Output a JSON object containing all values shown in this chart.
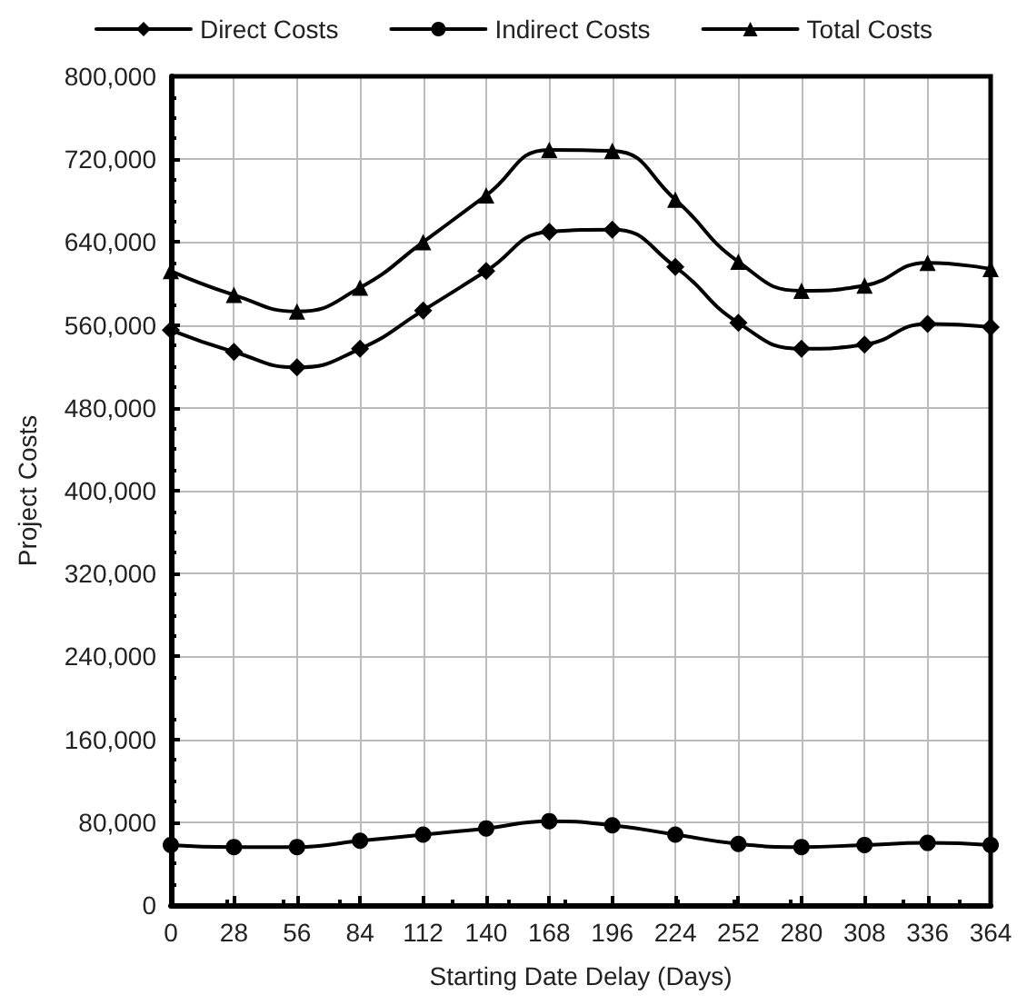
{
  "chart_data": {
    "type": "line",
    "xlabel": "Starting Date Delay (Days)",
    "ylabel": "Project Costs",
    "x": [
      0,
      28,
      56,
      84,
      112,
      140,
      168,
      196,
      224,
      252,
      280,
      308,
      336,
      364
    ],
    "series": [
      {
        "name": "Direct Costs",
        "color": "#000000",
        "marker": "diamond",
        "values": [
          555000,
          534000,
          519000,
          537000,
          574000,
          612000,
          650000,
          652000,
          616000,
          562000,
          537000,
          541000,
          561000,
          558000
        ]
      },
      {
        "name": "Indirect Costs",
        "color": "#000000",
        "marker": "circle",
        "values": [
          58000,
          56000,
          56000,
          62000,
          68000,
          74000,
          81000,
          77000,
          68000,
          59000,
          56000,
          58000,
          60000,
          58000
        ]
      },
      {
        "name": "Total Costs",
        "color": "#000000",
        "marker": "triangle",
        "values": [
          612000,
          589000,
          573000,
          596000,
          640000,
          685000,
          729000,
          728000,
          681000,
          621000,
          593000,
          598000,
          620000,
          614000
        ]
      }
    ],
    "xlim": [
      0,
      364
    ],
    "xticks": [
      0,
      28,
      56,
      84,
      112,
      140,
      168,
      196,
      224,
      252,
      280,
      308,
      336,
      364
    ],
    "ylim": [
      0,
      800000
    ],
    "yticks": [
      0,
      {
        "value": 80000,
        "label": "80,000"
      },
      {
        "value": 160000,
        "label": "160,000"
      },
      {
        "value": 240000,
        "label": "240,000"
      },
      {
        "value": 320000,
        "label": "320,000"
      },
      {
        "value": 400000,
        "label": "400,000"
      },
      {
        "value": 480000,
        "label": "480,000"
      },
      {
        "value": 560000,
        "label": "560,000"
      },
      {
        "value": 640000,
        "label": "640,000"
      },
      {
        "value": 720000,
        "label": "720,000"
      },
      {
        "value": 800000,
        "label": "800,000"
      }
    ],
    "grid": true,
    "legend": "top",
    "line_style": "solid"
  }
}
